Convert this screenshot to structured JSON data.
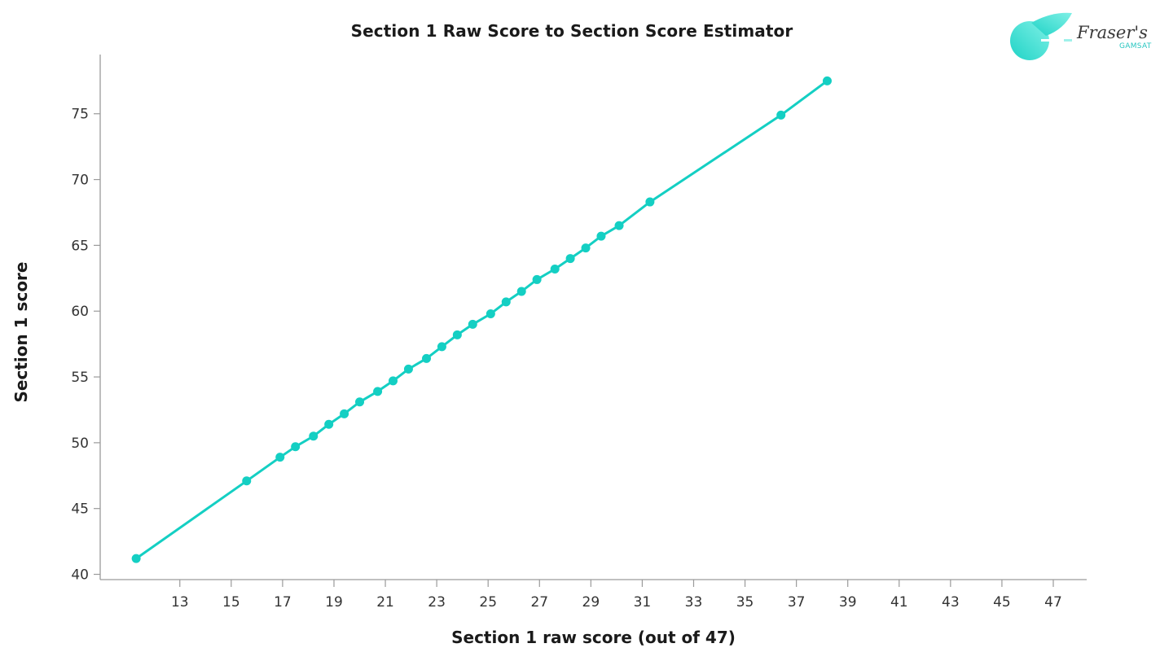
{
  "logo": {
    "brand": "Fraser's",
    "sub": "GAMSAT"
  },
  "chart_data": {
    "type": "line",
    "title": "Section 1 Raw Score to Section Score Estimator",
    "xlabel": "Section 1 raw score (out of 47)",
    "ylabel": "Section 1 score",
    "x_ticks": [
      13,
      15,
      17,
      19,
      21,
      23,
      25,
      27,
      29,
      31,
      33,
      35,
      37,
      39,
      41,
      43,
      45,
      47
    ],
    "y_ticks": [
      40,
      45,
      50,
      55,
      60,
      65,
      70,
      75
    ],
    "xlim": [
      9.9,
      48.3
    ],
    "ylim": [
      39.6,
      79.5
    ],
    "grid": false,
    "legend": null,
    "color": "#14CFC3",
    "series": [
      {
        "name": "Section 1 score",
        "points": [
          [
            11.3,
            41.2
          ],
          [
            15.6,
            47.1
          ],
          [
            16.9,
            48.9
          ],
          [
            17.5,
            49.7
          ],
          [
            18.2,
            50.5
          ],
          [
            18.8,
            51.4
          ],
          [
            19.4,
            52.2
          ],
          [
            20.0,
            53.1
          ],
          [
            20.7,
            53.9
          ],
          [
            21.3,
            54.7
          ],
          [
            21.9,
            55.6
          ],
          [
            22.6,
            56.4
          ],
          [
            23.2,
            57.3
          ],
          [
            23.8,
            58.2
          ],
          [
            24.4,
            59.0
          ],
          [
            25.1,
            59.8
          ],
          [
            25.7,
            60.7
          ],
          [
            26.3,
            61.5
          ],
          [
            26.9,
            62.4
          ],
          [
            27.6,
            63.2
          ],
          [
            28.2,
            64.0
          ],
          [
            28.8,
            64.8
          ],
          [
            29.4,
            65.7
          ],
          [
            30.1,
            66.5
          ],
          [
            31.3,
            68.3
          ],
          [
            36.4,
            74.9
          ],
          [
            38.2,
            77.5
          ]
        ]
      }
    ]
  }
}
